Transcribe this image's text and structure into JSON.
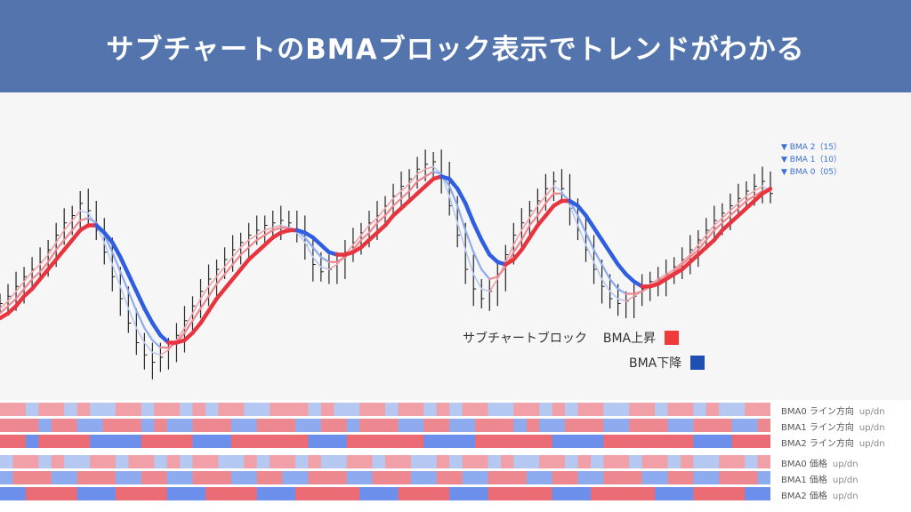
{
  "header": {
    "title": "サブチャートのBMAブロック表示でトレンドがわかる"
  },
  "colors": {
    "header_bg": "#5374ad",
    "bma_up": "#e8343f",
    "bma_down": "#2f5fe0",
    "bma0_up": "#f2a0a8",
    "bma0_down": "#b5c8f2",
    "bma1_up": "#ee8890",
    "bma1_down": "#8eabf0",
    "bma2_up": "#ec6c76",
    "bma2_down": "#6d8fec",
    "candle": "#222222"
  },
  "ma_labels": [
    {
      "text": "▼ BMA 2（15）"
    },
    {
      "text": "▼ BMA 1（10）"
    },
    {
      "text": "▼ BMA 0（05）"
    }
  ],
  "legend": {
    "title": "サブチャートブロック",
    "up_label": "BMA上昇",
    "down_label": "BMA下降",
    "up_color": "#f03a3a",
    "down_color": "#1f4fb0"
  },
  "block_rows": [
    {
      "name": "BMA0",
      "kind": "ライン方向",
      "ud": "up/dn",
      "palette": "bma0",
      "states": [
        1,
        1,
        0,
        1,
        1,
        0,
        1,
        0,
        0,
        1,
        1,
        0,
        1,
        1,
        0,
        1,
        0,
        1,
        1,
        0,
        0,
        1,
        1,
        1,
        0,
        1,
        0,
        0,
        1,
        1,
        0,
        1,
        1,
        0,
        1,
        0,
        1,
        1,
        0,
        0,
        1,
        1,
        0,
        1,
        0,
        1,
        1,
        0,
        0,
        1,
        1,
        0,
        1,
        1,
        0,
        1,
        0,
        0,
        1,
        1
      ]
    },
    {
      "name": "BMA1",
      "kind": "ライン方向",
      "ud": "up/dn",
      "palette": "bma1",
      "states": [
        1,
        1,
        1,
        0,
        1,
        1,
        0,
        0,
        1,
        1,
        1,
        0,
        1,
        0,
        0,
        1,
        1,
        1,
        0,
        0,
        1,
        1,
        1,
        0,
        0,
        1,
        1,
        0,
        1,
        1,
        1,
        0,
        0,
        1,
        1,
        0,
        0,
        1,
        1,
        1,
        0,
        1,
        0,
        0,
        1,
        1,
        1,
        0,
        0,
        1,
        1,
        1,
        0,
        0,
        1,
        1,
        1,
        0,
        0,
        1
      ]
    },
    {
      "name": "BMA2",
      "kind": "ライン方向",
      "ud": "up/dn",
      "palette": "bma2",
      "states": [
        1,
        1,
        0,
        1,
        1,
        1,
        1,
        0,
        0,
        0,
        0,
        1,
        1,
        1,
        1,
        0,
        0,
        0,
        1,
        1,
        1,
        1,
        1,
        1,
        0,
        0,
        0,
        1,
        1,
        1,
        1,
        1,
        1,
        0,
        0,
        0,
        0,
        1,
        1,
        1,
        1,
        1,
        1,
        0,
        0,
        0,
        0,
        1,
        1,
        1,
        1,
        1,
        1,
        1,
        0,
        0,
        0,
        1,
        1,
        1
      ]
    },
    {
      "name": "BMA0",
      "kind": "価格",
      "ud": "up/dn",
      "palette": "bma0",
      "states": [
        0,
        1,
        1,
        0,
        1,
        0,
        0,
        1,
        1,
        0,
        1,
        1,
        0,
        1,
        0,
        1,
        1,
        0,
        0,
        1,
        0,
        1,
        1,
        0,
        1,
        0,
        0,
        1,
        1,
        0,
        1,
        1,
        0,
        0,
        1,
        0,
        1,
        1,
        0,
        1,
        0,
        0,
        1,
        1,
        0,
        1,
        0,
        1,
        1,
        0,
        1,
        1,
        0,
        1,
        0,
        0,
        1,
        1,
        0,
        1
      ]
    },
    {
      "name": "BMA1",
      "kind": "価格",
      "ud": "up/dn",
      "palette": "bma1",
      "states": [
        0,
        1,
        1,
        1,
        0,
        0,
        1,
        1,
        1,
        0,
        0,
        1,
        1,
        0,
        0,
        1,
        1,
        1,
        0,
        0,
        1,
        1,
        0,
        0,
        1,
        1,
        1,
        0,
        0,
        1,
        1,
        1,
        0,
        0,
        1,
        1,
        0,
        0,
        1,
        1,
        1,
        0,
        0,
        1,
        1,
        0,
        0,
        1,
        1,
        1,
        0,
        0,
        1,
        1,
        0,
        0,
        1,
        1,
        1,
        0
      ]
    },
    {
      "name": "BMA2",
      "kind": "価格",
      "ud": "up/dn",
      "palette": "bma2",
      "states": [
        0,
        0,
        1,
        1,
        1,
        1,
        0,
        0,
        0,
        1,
        1,
        1,
        1,
        0,
        0,
        0,
        1,
        1,
        1,
        1,
        0,
        0,
        0,
        1,
        1,
        1,
        1,
        1,
        0,
        0,
        0,
        1,
        1,
        1,
        1,
        0,
        0,
        0,
        1,
        1,
        1,
        1,
        1,
        0,
        0,
        0,
        1,
        1,
        1,
        1,
        1,
        0,
        0,
        0,
        1,
        1,
        1,
        1,
        0,
        0
      ]
    }
  ],
  "chart_data": {
    "type": "line",
    "title": "",
    "xlabel": "",
    "ylabel": "",
    "ylim": [
      0,
      100
    ],
    "x": [
      0,
      1,
      2,
      3,
      4,
      5,
      6,
      7,
      8,
      9,
      10,
      11,
      12,
      13,
      14,
      15,
      16,
      17,
      18,
      19,
      20,
      21,
      22,
      23,
      24,
      25,
      26,
      27,
      28,
      29,
      30,
      31,
      32,
      33,
      34,
      35,
      36,
      37,
      38,
      39,
      40,
      41,
      42,
      43,
      44,
      45,
      46,
      47,
      48,
      49,
      50,
      51,
      52,
      53,
      54,
      55,
      56,
      57,
      58,
      59,
      60,
      61,
      62,
      63,
      64,
      65,
      66,
      67,
      68,
      69,
      70,
      71,
      72,
      73,
      74,
      75,
      76,
      77,
      78,
      79,
      80,
      81,
      82,
      83,
      84,
      85,
      86,
      87,
      88,
      89,
      90,
      91,
      92,
      93,
      94,
      95,
      96
    ],
    "price": [
      30,
      33,
      37,
      41,
      44,
      47,
      52,
      58,
      63,
      66,
      71,
      68,
      60,
      51,
      41,
      32,
      22,
      14,
      9,
      6,
      8,
      12,
      17,
      23,
      29,
      35,
      40,
      44,
      48,
      52,
      55,
      58,
      60,
      62,
      63,
      64,
      63,
      60,
      54,
      46,
      43,
      44,
      47,
      51,
      55,
      59,
      63,
      66,
      70,
      74,
      78,
      81,
      85,
      87,
      88,
      82,
      70,
      58,
      44,
      36,
      32,
      35,
      42,
      50,
      58,
      63,
      68,
      72,
      77,
      80,
      77,
      69,
      60,
      52,
      44,
      37,
      32,
      30,
      31,
      33,
      36,
      39,
      40,
      42,
      45,
      48,
      52,
      56,
      60,
      64,
      67,
      70,
      73,
      76,
      78,
      80,
      75
    ],
    "series": [
      {
        "name": "BMA 0",
        "values": [
          28,
          31,
          35,
          39,
          43,
          46,
          50,
          55,
          60,
          64,
          68,
          67,
          62,
          55,
          46,
          37,
          28,
          20,
          14,
          10,
          9,
          11,
          15,
          20,
          26,
          32,
          37,
          41,
          45,
          49,
          53,
          56,
          58,
          60,
          61,
          62,
          61,
          59,
          55,
          49,
          45,
          44,
          46,
          50,
          54,
          58,
          62,
          65,
          69,
          73,
          76,
          79,
          83,
          85,
          86,
          83,
          74,
          63,
          52,
          42,
          36,
          35,
          40,
          47,
          54,
          60,
          65,
          70,
          74,
          78,
          76,
          70,
          62,
          54,
          47,
          40,
          35,
          32,
          31,
          33,
          35,
          38,
          40,
          42,
          44,
          47,
          50,
          54,
          58,
          62,
          65,
          68,
          71,
          74,
          76,
          78,
          76
        ]
      },
      {
        "name": "BMA 1",
        "values": [
          26,
          29,
          32,
          36,
          40,
          43,
          47,
          52,
          56,
          60,
          64,
          65,
          63,
          58,
          51,
          43,
          35,
          27,
          20,
          15,
          12,
          12,
          14,
          18,
          23,
          28,
          33,
          38,
          42,
          46,
          50,
          53,
          56,
          58,
          60,
          61,
          61,
          60,
          57,
          53,
          49,
          47,
          47,
          49,
          52,
          56,
          59,
          63,
          66,
          70,
          73,
          76,
          80,
          82,
          84,
          83,
          78,
          70,
          60,
          51,
          44,
          40,
          41,
          45,
          51,
          56,
          62,
          66,
          71,
          75,
          75,
          72,
          66,
          59,
          52,
          46,
          40,
          36,
          34,
          34,
          35,
          37,
          39,
          41,
          43,
          46,
          49,
          52,
          56,
          60,
          63,
          66,
          69,
          72,
          74,
          76,
          76
        ]
      },
      {
        "name": "BMA 2",
        "values": [
          24,
          26,
          29,
          33,
          36,
          40,
          44,
          48,
          52,
          56,
          60,
          62,
          62,
          59,
          55,
          49,
          42,
          35,
          28,
          22,
          17,
          14,
          14,
          15,
          18,
          22,
          27,
          32,
          36,
          40,
          44,
          48,
          51,
          54,
          57,
          59,
          60,
          60,
          59,
          57,
          54,
          51,
          50,
          50,
          51,
          53,
          56,
          59,
          62,
          66,
          69,
          72,
          75,
          78,
          81,
          82,
          81,
          77,
          71,
          63,
          56,
          50,
          47,
          46,
          48,
          52,
          57,
          62,
          66,
          70,
          72,
          72,
          70,
          66,
          61,
          56,
          51,
          46,
          42,
          39,
          37,
          37,
          38,
          40,
          42,
          44,
          47,
          50,
          53,
          56,
          60,
          63,
          66,
          69,
          72,
          75,
          77
        ]
      }
    ]
  }
}
